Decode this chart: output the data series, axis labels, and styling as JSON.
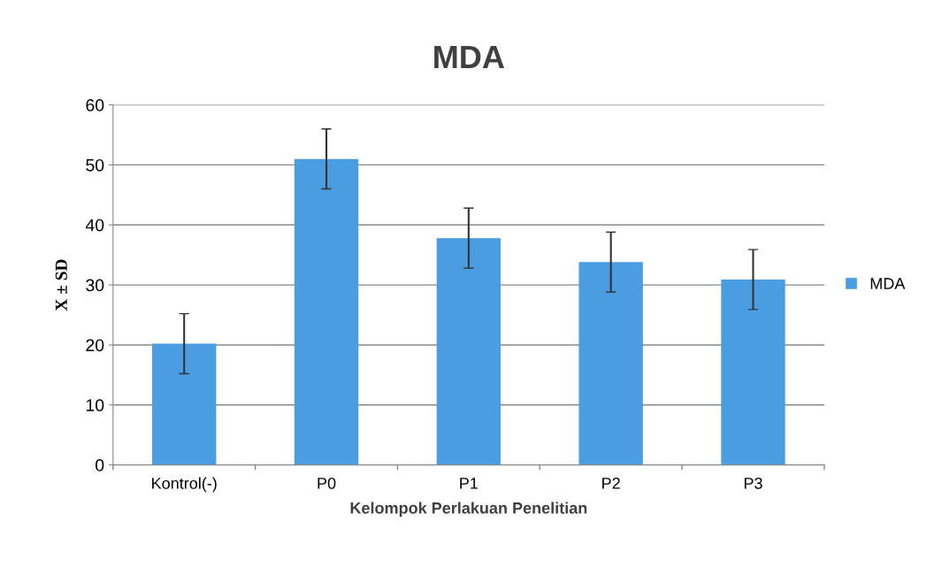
{
  "chart_data": {
    "type": "bar",
    "title": "MDA",
    "xlabel": "Kelompok Perlakuan Penelitian",
    "ylabel": "X ± SD",
    "categories": [
      "Kontrol(-)",
      "P0",
      "P1",
      "P2",
      "P3"
    ],
    "series": [
      {
        "name": "MDA",
        "color": "#4a9de0",
        "values": [
          20.2,
          51.0,
          37.8,
          33.8,
          30.9
        ],
        "errors": [
          5,
          5,
          5,
          5,
          5
        ]
      }
    ],
    "ylim": [
      0,
      60
    ],
    "yticks": [
      0,
      10,
      20,
      30,
      40,
      50,
      60
    ],
    "grid": "y",
    "legend": "right"
  }
}
